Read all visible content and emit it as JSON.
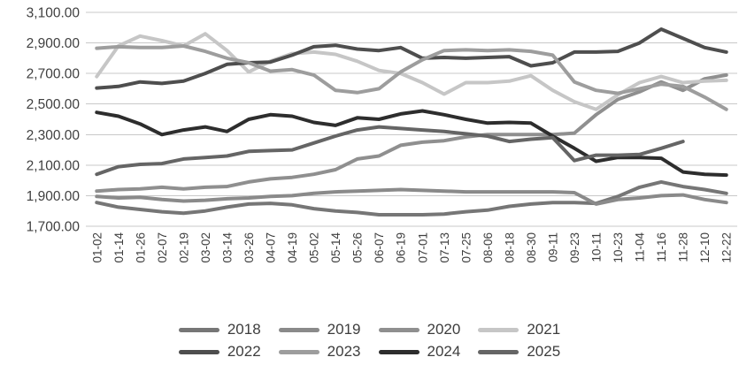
{
  "chart_data": {
    "type": "line",
    "title": "",
    "xlabel": "",
    "ylabel": "",
    "grid": true,
    "legend_position": "bottom",
    "background": "#ffffff",
    "grid_color": "#c8c8c8",
    "axis_text_color": "#3f3f3f",
    "ylim": [
      1700,
      3100
    ],
    "y_ticks": [
      {
        "value": 3100,
        "label": "3,100.00"
      },
      {
        "value": 2900,
        "label": "2,900.00"
      },
      {
        "value": 2700,
        "label": "2,700.00"
      },
      {
        "value": 2500,
        "label": "2,500.00"
      },
      {
        "value": 2300,
        "label": "2,300.00"
      },
      {
        "value": 2100,
        "label": "2,100.00"
      },
      {
        "value": 1900,
        "label": "1,900.00"
      },
      {
        "value": 1700,
        "label": "1,700.00"
      }
    ],
    "x_labels": [
      "01-02",
      "01-14",
      "01-26",
      "02-07",
      "02-19",
      "03-02",
      "03-14",
      "03-26",
      "04-07",
      "04-19",
      "05-02",
      "05-14",
      "05-26",
      "06-07",
      "06-19",
      "07-01",
      "07-13",
      "07-25",
      "08-06",
      "08-18",
      "08-30",
      "09-11",
      "09-23",
      "10-11",
      "10-23",
      "11-04",
      "11-16",
      "11-28",
      "12-10",
      "12-22"
    ],
    "series": [
      {
        "name": "2018",
        "color": "#767676",
        "values": [
          1855,
          1825,
          1810,
          1795,
          1785,
          1800,
          1825,
          1845,
          1850,
          1840,
          1815,
          1800,
          1790,
          1775,
          1775,
          1775,
          1780,
          1795,
          1805,
          1830,
          1845,
          1855,
          1855,
          1850,
          1895,
          1955,
          1990,
          1960,
          1940,
          1915
        ]
      },
      {
        "name": "2019",
        "color": "#8a8a8a",
        "values": [
          1895,
          1885,
          1890,
          1875,
          1865,
          1870,
          1880,
          1885,
          1895,
          1900,
          1915,
          1925,
          1930,
          1935,
          1940,
          1935,
          1930,
          1925,
          1925,
          1925,
          1925,
          1925,
          1920,
          1845,
          1875,
          1885,
          1900,
          1905,
          1875,
          1855
        ]
      },
      {
        "name": "2020",
        "color": "#8f8f8f",
        "values": [
          1930,
          1940,
          1945,
          1955,
          1945,
          1955,
          1960,
          1990,
          2010,
          2020,
          2040,
          2070,
          2140,
          2160,
          2230,
          2250,
          2260,
          2285,
          2300,
          2300,
          2300,
          2300,
          2310,
          2430,
          2530,
          2580,
          2645,
          2590,
          2665,
          2690
        ]
      },
      {
        "name": "2021",
        "color": "#c6c6c6",
        "values": [
          2680,
          2880,
          2945,
          2915,
          2880,
          2960,
          2850,
          2710,
          2780,
          2830,
          2840,
          2825,
          2780,
          2720,
          2700,
          2640,
          2565,
          2640,
          2640,
          2650,
          2685,
          2590,
          2515,
          2465,
          2560,
          2640,
          2680,
          2640,
          2650,
          2655
        ]
      },
      {
        "name": "2022",
        "color": "#4e4e4e",
        "values": [
          2605,
          2615,
          2645,
          2635,
          2650,
          2700,
          2760,
          2770,
          2775,
          2820,
          2875,
          2885,
          2860,
          2850,
          2870,
          2800,
          2805,
          2800,
          2805,
          2810,
          2750,
          2770,
          2840,
          2840,
          2845,
          2900,
          2990,
          2930,
          2870,
          2840
        ]
      },
      {
        "name": "2023",
        "color": "#9d9d9d",
        "values": [
          2865,
          2875,
          2870,
          2870,
          2880,
          2845,
          2800,
          2770,
          2715,
          2725,
          2690,
          2590,
          2575,
          2600,
          2710,
          2790,
          2850,
          2855,
          2850,
          2855,
          2845,
          2820,
          2645,
          2590,
          2570,
          2600,
          2630,
          2615,
          2545,
          2465
        ]
      },
      {
        "name": "2024",
        "color": "#2d2d2d",
        "values": [
          2445,
          2420,
          2370,
          2300,
          2330,
          2350,
          2320,
          2400,
          2430,
          2420,
          2380,
          2360,
          2410,
          2400,
          2435,
          2455,
          2430,
          2400,
          2375,
          2380,
          2375,
          2290,
          2210,
          2125,
          2150,
          2150,
          2145,
          2055,
          2040,
          2035
        ]
      },
      {
        "name": "2025",
        "color": "#656565",
        "values": [
          2040,
          2090,
          2105,
          2110,
          2140,
          2150,
          2160,
          2190,
          2195,
          2200,
          2245,
          2290,
          2330,
          2350,
          2340,
          2330,
          2320,
          2305,
          2290,
          2255,
          2270,
          2280,
          2130,
          2165,
          2165,
          2170,
          2210,
          2255,
          null,
          null
        ]
      }
    ],
    "legend_rows": [
      [
        "2018",
        "2019",
        "2020",
        "2021"
      ],
      [
        "2022",
        "2023",
        "2024",
        "2025"
      ]
    ]
  }
}
